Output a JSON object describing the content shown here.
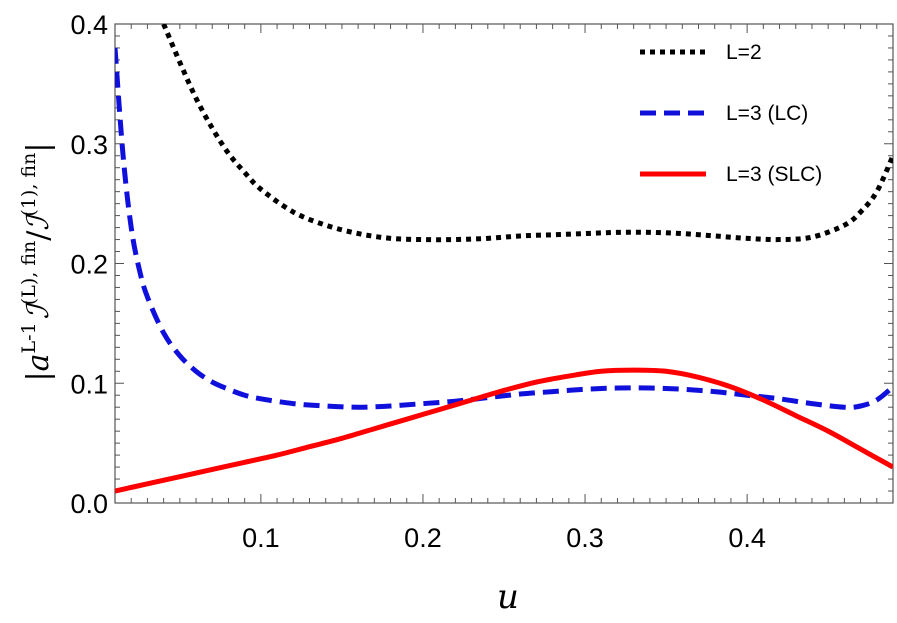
{
  "chart_data": {
    "type": "line",
    "title": "",
    "xlabel": "u",
    "ylabel": "|a^{L-1} I^{(L),fin} / I^{(1),fin}|",
    "ylabel_parts": {
      "bar": "|",
      "a": "a",
      "a_sup": "L-1",
      "I1": "ℐ",
      "I1_sup": "(L), fin",
      "slash": "/",
      "I2": "ℐ",
      "I2_sup": "(1), fin",
      "bar_end": "|"
    },
    "xlim": [
      0.01,
      0.49
    ],
    "ylim": [
      0.0,
      0.4
    ],
    "xticks": [
      0.1,
      0.2,
      0.3,
      0.4
    ],
    "xtick_labels": [
      "0.1",
      "0.2",
      "0.3",
      "0.4"
    ],
    "yticks": [
      0.0,
      0.1,
      0.2,
      0.3,
      0.4
    ],
    "ytick_labels": [
      "0.0",
      "0.1",
      "0.2",
      "0.3",
      "0.4"
    ],
    "grid": false,
    "legend_position": "top-right",
    "series": [
      {
        "name": "L=2",
        "style": "dotted",
        "color": "#000000",
        "x": [
          0.04,
          0.05,
          0.06,
          0.07,
          0.08,
          0.09,
          0.1,
          0.12,
          0.14,
          0.16,
          0.18,
          0.2,
          0.22,
          0.24,
          0.26,
          0.28,
          0.3,
          0.32,
          0.34,
          0.36,
          0.38,
          0.4,
          0.42,
          0.44,
          0.46,
          0.47,
          0.48,
          0.49
        ],
        "y": [
          0.4,
          0.368,
          0.338,
          0.313,
          0.292,
          0.276,
          0.262,
          0.243,
          0.232,
          0.225,
          0.221,
          0.22,
          0.22,
          0.221,
          0.223,
          0.224,
          0.225,
          0.226,
          0.226,
          0.225,
          0.223,
          0.221,
          0.22,
          0.222,
          0.232,
          0.243,
          0.26,
          0.29
        ]
      },
      {
        "name": "L=3 (LC)",
        "style": "dashed",
        "color": "#1010dd",
        "x": [
          0.01,
          0.015,
          0.02,
          0.025,
          0.03,
          0.04,
          0.05,
          0.06,
          0.07,
          0.08,
          0.09,
          0.1,
          0.12,
          0.14,
          0.16,
          0.18,
          0.2,
          0.22,
          0.24,
          0.26,
          0.28,
          0.3,
          0.32,
          0.34,
          0.36,
          0.38,
          0.4,
          0.42,
          0.44,
          0.46,
          0.47,
          0.48,
          0.49
        ],
        "y": [
          0.38,
          0.29,
          0.23,
          0.195,
          0.172,
          0.142,
          0.123,
          0.11,
          0.101,
          0.095,
          0.09,
          0.087,
          0.083,
          0.081,
          0.08,
          0.081,
          0.083,
          0.085,
          0.088,
          0.091,
          0.093,
          0.095,
          0.096,
          0.096,
          0.095,
          0.093,
          0.09,
          0.087,
          0.083,
          0.08,
          0.081,
          0.086,
          0.097
        ]
      },
      {
        "name": "L=3 (SLC)",
        "style": "solid",
        "color": "#ff0000",
        "x": [
          0.01,
          0.03,
          0.05,
          0.07,
          0.09,
          0.11,
          0.13,
          0.15,
          0.17,
          0.19,
          0.21,
          0.23,
          0.25,
          0.27,
          0.29,
          0.31,
          0.33,
          0.35,
          0.37,
          0.39,
          0.41,
          0.43,
          0.45,
          0.47,
          0.49
        ],
        "y": [
          0.01,
          0.016,
          0.022,
          0.028,
          0.034,
          0.04,
          0.047,
          0.054,
          0.062,
          0.07,
          0.078,
          0.086,
          0.094,
          0.101,
          0.106,
          0.11,
          0.111,
          0.11,
          0.105,
          0.097,
          0.086,
          0.073,
          0.06,
          0.045,
          0.03
        ]
      }
    ]
  }
}
